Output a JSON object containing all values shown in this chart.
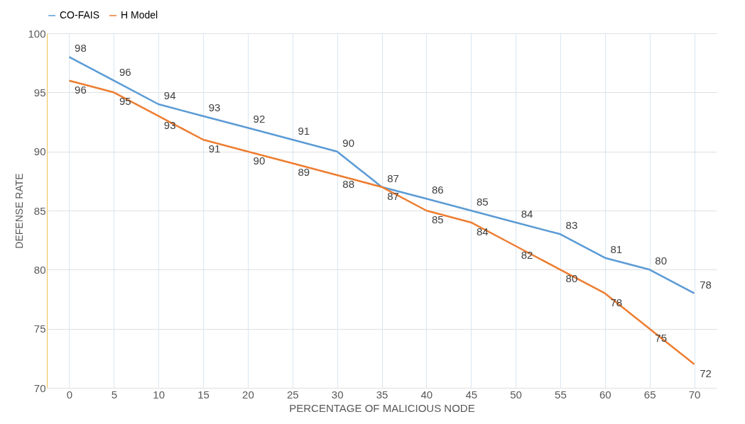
{
  "chart_data": {
    "type": "line",
    "xlabel": "PERCENTAGE OF MALICIOUS NODE",
    "ylabel": "DEFENSE RATE",
    "categories": [
      "0",
      "5",
      "10",
      "15",
      "20",
      "25",
      "30",
      "35",
      "40",
      "45",
      "50",
      "55",
      "60",
      "65",
      "70"
    ],
    "series": [
      {
        "name": "CO-FAIS",
        "color": "#5b9bd5",
        "values": [
          98,
          96,
          94,
          93,
          92,
          91,
          90,
          87,
          86,
          85,
          84,
          83,
          81,
          80,
          78
        ]
      },
      {
        "name": "H Model",
        "color": "#ed7d31",
        "values": [
          96,
          95,
          93,
          91,
          90,
          89,
          88,
          87,
          85,
          84,
          82,
          80,
          78,
          75,
          72
        ]
      }
    ],
    "ylim": [
      70,
      100
    ],
    "yticks": [
      70,
      75,
      80,
      85,
      90,
      95,
      100
    ],
    "grid": true,
    "legend": "top",
    "data_labels": true,
    "marker": "none",
    "line_style": "solid"
  }
}
